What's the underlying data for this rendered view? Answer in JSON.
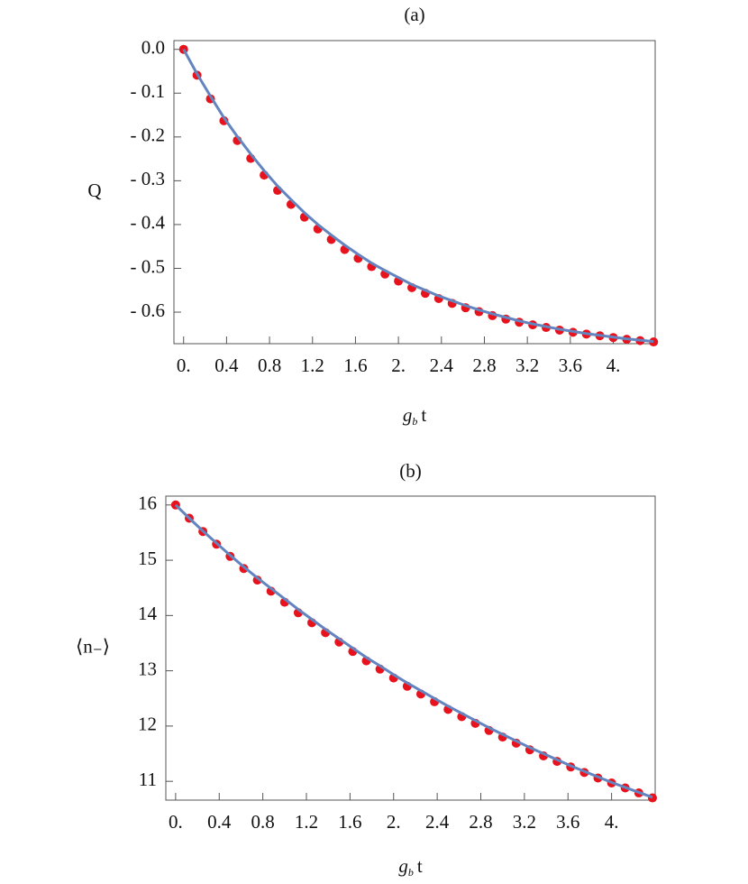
{
  "chart_data": [
    {
      "type": "line",
      "title": "(a)",
      "ylabel": "Q",
      "xlabel": {
        "base": "g",
        "subscript": "b",
        "tail": "t"
      },
      "x": [
        0,
        0.125,
        0.25,
        0.375,
        0.5,
        0.625,
        0.75,
        0.875,
        1,
        1.125,
        1.25,
        1.375,
        1.5,
        1.625,
        1.75,
        1.875,
        2,
        2.125,
        2.25,
        2.375,
        2.5,
        2.625,
        2.75,
        2.875,
        3,
        3.125,
        3.25,
        3.375,
        3.5,
        3.625,
        3.75,
        3.875,
        4,
        4.125,
        4.25,
        4.375
      ],
      "series": [
        {
          "mode": "markers",
          "color": "#e8121c",
          "values": [
            0,
            -0.059,
            -0.113,
            -0.163,
            -0.208,
            -0.249,
            -0.287,
            -0.322,
            -0.354,
            -0.383,
            -0.41,
            -0.434,
            -0.457,
            -0.477,
            -0.496,
            -0.513,
            -0.529,
            -0.544,
            -0.557,
            -0.569,
            -0.58,
            -0.59,
            -0.599,
            -0.608,
            -0.616,
            -0.623,
            -0.629,
            -0.635,
            -0.641,
            -0.646,
            -0.65,
            -0.654,
            -0.658,
            -0.662,
            -0.665,
            -0.668
          ]
        },
        {
          "mode": "line",
          "color": "#6384bf",
          "values": [
            0,
            -0.056,
            -0.107,
            -0.156,
            -0.199,
            -0.239,
            -0.277,
            -0.312,
            -0.343,
            -0.373,
            -0.4,
            -0.424,
            -0.447,
            -0.468,
            -0.488,
            -0.505,
            -0.521,
            -0.537,
            -0.55,
            -0.563,
            -0.574,
            -0.585,
            -0.595,
            -0.604,
            -0.612,
            -0.62,
            -0.627,
            -0.633,
            -0.639,
            -0.644,
            -0.649,
            -0.653,
            -0.657,
            -0.661,
            -0.664,
            -0.667
          ]
        }
      ],
      "xlim": [
        -0.09,
        4.39
      ],
      "ylim": [
        -0.672,
        0.02
      ],
      "xticks": [
        {
          "value": 0,
          "label": "0."
        },
        0.4,
        0.8,
        1.2,
        1.6,
        {
          "value": 2,
          "label": "2."
        },
        2.4,
        2.8,
        3.2,
        3.6,
        {
          "value": 4,
          "label": "4."
        }
      ],
      "yticks": [
        {
          "value": 0,
          "label": "0.0"
        },
        {
          "value": -0.1,
          "label": "- 0.1"
        },
        {
          "value": -0.2,
          "label": "- 0.2"
        },
        {
          "value": -0.3,
          "label": "- 0.3"
        },
        {
          "value": -0.4,
          "label": "- 0.4"
        },
        {
          "value": -0.5,
          "label": "- 0.5"
        },
        {
          "value": -0.6,
          "label": "- 0.6"
        }
      ]
    },
    {
      "type": "line",
      "title": "(b)",
      "ylabel": "⟨n₋⟩",
      "xlabel": {
        "base": "g",
        "subscript": "b",
        "tail": "t"
      },
      "x": [
        0,
        0.125,
        0.25,
        0.375,
        0.5,
        0.625,
        0.75,
        0.875,
        1,
        1.125,
        1.25,
        1.375,
        1.5,
        1.625,
        1.75,
        1.875,
        2,
        2.125,
        2.25,
        2.375,
        2.5,
        2.625,
        2.75,
        2.875,
        3,
        3.125,
        3.25,
        3.375,
        3.5,
        3.625,
        3.75,
        3.875,
        4,
        4.125,
        4.25,
        4.375
      ],
      "series": [
        {
          "mode": "markers",
          "color": "#e8121c",
          "values": [
            16,
            15.76,
            15.52,
            15.29,
            15.07,
            14.85,
            14.64,
            14.44,
            14.24,
            14.05,
            13.87,
            13.69,
            13.52,
            13.35,
            13.18,
            13.03,
            12.87,
            12.72,
            12.58,
            12.44,
            12.3,
            12.17,
            12.05,
            11.92,
            11.8,
            11.69,
            11.57,
            11.46,
            11.36,
            11.26,
            11.16,
            11.06,
            10.97,
            10.88,
            10.79,
            10.7
          ]
        },
        {
          "mode": "line",
          "color": "#6384bf",
          "values": [
            16,
            15.76,
            15.53,
            15.31,
            15.09,
            14.88,
            14.68,
            14.49,
            14.3,
            14.11,
            13.93,
            13.75,
            13.58,
            13.41,
            13.24,
            13.09,
            12.93,
            12.78,
            12.64,
            12.5,
            12.36,
            12.23,
            12.1,
            11.97,
            11.85,
            11.73,
            11.61,
            11.5,
            11.39,
            11.28,
            11.18,
            11.08,
            10.98,
            10.89,
            10.8,
            10.71
          ]
        }
      ],
      "xlim": [
        -0.09,
        4.4
      ],
      "ylim": [
        10.66,
        16.16
      ],
      "xticks": [
        {
          "value": 0,
          "label": "0."
        },
        0.4,
        0.8,
        1.2,
        1.6,
        {
          "value": 2,
          "label": "2."
        },
        2.4,
        2.8,
        3.2,
        3.6,
        {
          "value": 4,
          "label": "4."
        }
      ],
      "yticks": [
        11,
        12,
        13,
        14,
        15,
        16
      ]
    }
  ]
}
